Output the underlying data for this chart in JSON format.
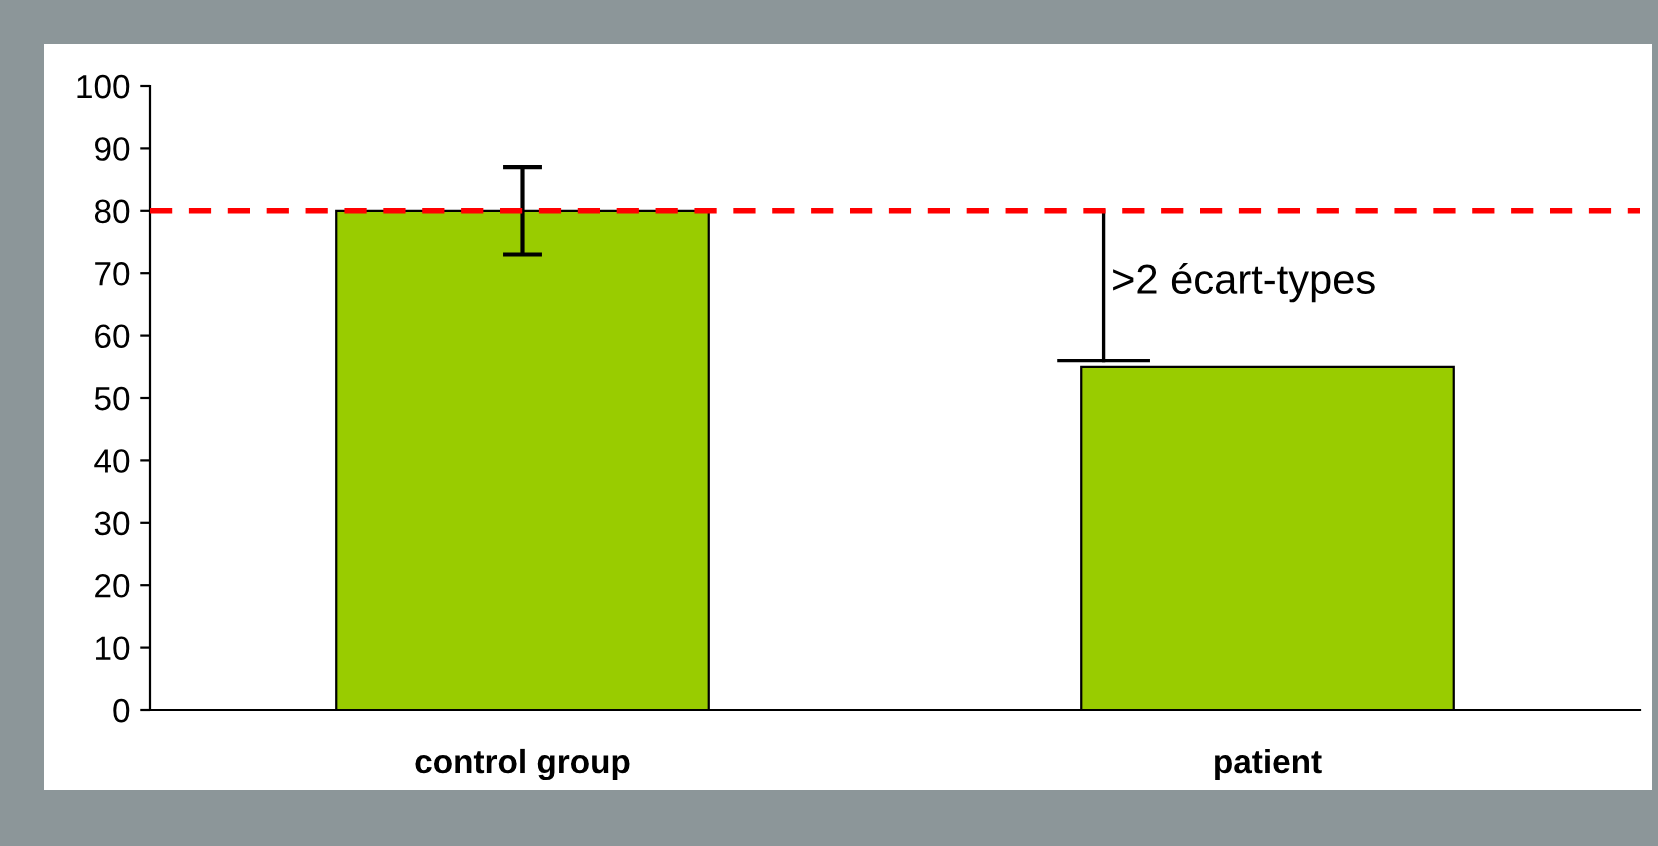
{
  "chart_data": {
    "type": "bar",
    "categories": [
      "control group",
      "patient"
    ],
    "values": [
      80,
      55
    ],
    "color": "#99cc00",
    "errors": [
      [
        73,
        87
      ],
      null
    ],
    "ylim": [
      0,
      100
    ],
    "yticks": [
      0,
      10,
      20,
      30,
      40,
      50,
      60,
      70,
      80,
      90,
      100
    ],
    "ref_lines": [
      {
        "axis": "y",
        "value": 80,
        "color": "#ff0000",
        "line_style": "dashed"
      }
    ],
    "annotations": [
      ">2 écart-types"
    ],
    "grid": false,
    "legend": false
  }
}
